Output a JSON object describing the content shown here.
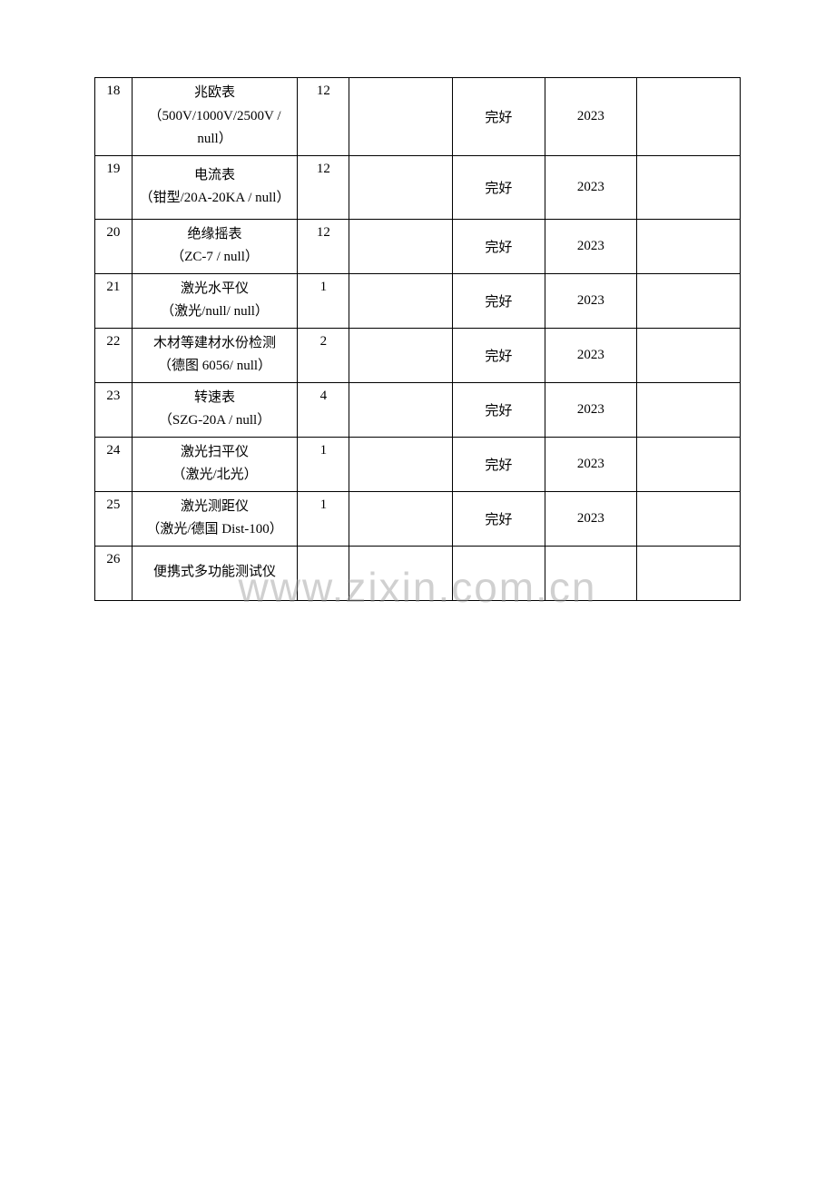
{
  "watermark": "www.zixin.com.cn",
  "table": {
    "columns": {
      "num_width": 40,
      "name_width": 180,
      "qty_width": 56,
      "blank1_width": 112,
      "status_width": 100,
      "year_width": 100,
      "blank2_width": 112
    },
    "border_color": "#000000",
    "text_color": "#000000",
    "font_size": 15,
    "background_color": "#ffffff",
    "rows": [
      {
        "num": "18",
        "name_line1": "兆欧表",
        "name_line2": "（500V/1000V/2500V / null）",
        "qty": "12",
        "blank1": "",
        "status": "完好",
        "year": "2023",
        "blank2": ""
      },
      {
        "num": "19",
        "name_line1": "电流表",
        "name_line2": "（钳型/20A-20KA / null）",
        "qty": "12",
        "blank1": "",
        "status": "完好",
        "year": "2023",
        "blank2": ""
      },
      {
        "num": "20",
        "name_line1": "绝缘摇表",
        "name_line2": "（ZC-7 / null）",
        "qty": "12",
        "blank1": "",
        "status": "完好",
        "year": "2023",
        "blank2": ""
      },
      {
        "num": "21",
        "name_line1": "激光水平仪",
        "name_line2": "（激光/null/ null）",
        "qty": "1",
        "blank1": "",
        "status": "完好",
        "year": "2023",
        "blank2": ""
      },
      {
        "num": "22",
        "name_line1": "木材等建材水份检测",
        "name_line2": "（德图 6056/ null）",
        "qty": "2",
        "blank1": "",
        "status": "完好",
        "year": "2023",
        "blank2": ""
      },
      {
        "num": "23",
        "name_line1": "转速表",
        "name_line2": "（SZG-20A / null）",
        "qty": "4",
        "blank1": "",
        "status": "完好",
        "year": "2023",
        "blank2": ""
      },
      {
        "num": "24",
        "name_line1": "激光扫平仪",
        "name_line2": "（激光/北光）",
        "qty": "1",
        "blank1": "",
        "status": "完好",
        "year": "2023",
        "blank2": ""
      },
      {
        "num": "25",
        "name_line1": "激光测距仪",
        "name_line2": "（激光/德国 Dist-100）",
        "qty": "1",
        "blank1": "",
        "status": "完好",
        "year": "2023",
        "blank2": ""
      },
      {
        "num": "26",
        "name_line1": "便携式多功能测试仪",
        "name_line2": "",
        "qty": "",
        "blank1": "",
        "status": "",
        "year": "",
        "blank2": ""
      }
    ]
  }
}
